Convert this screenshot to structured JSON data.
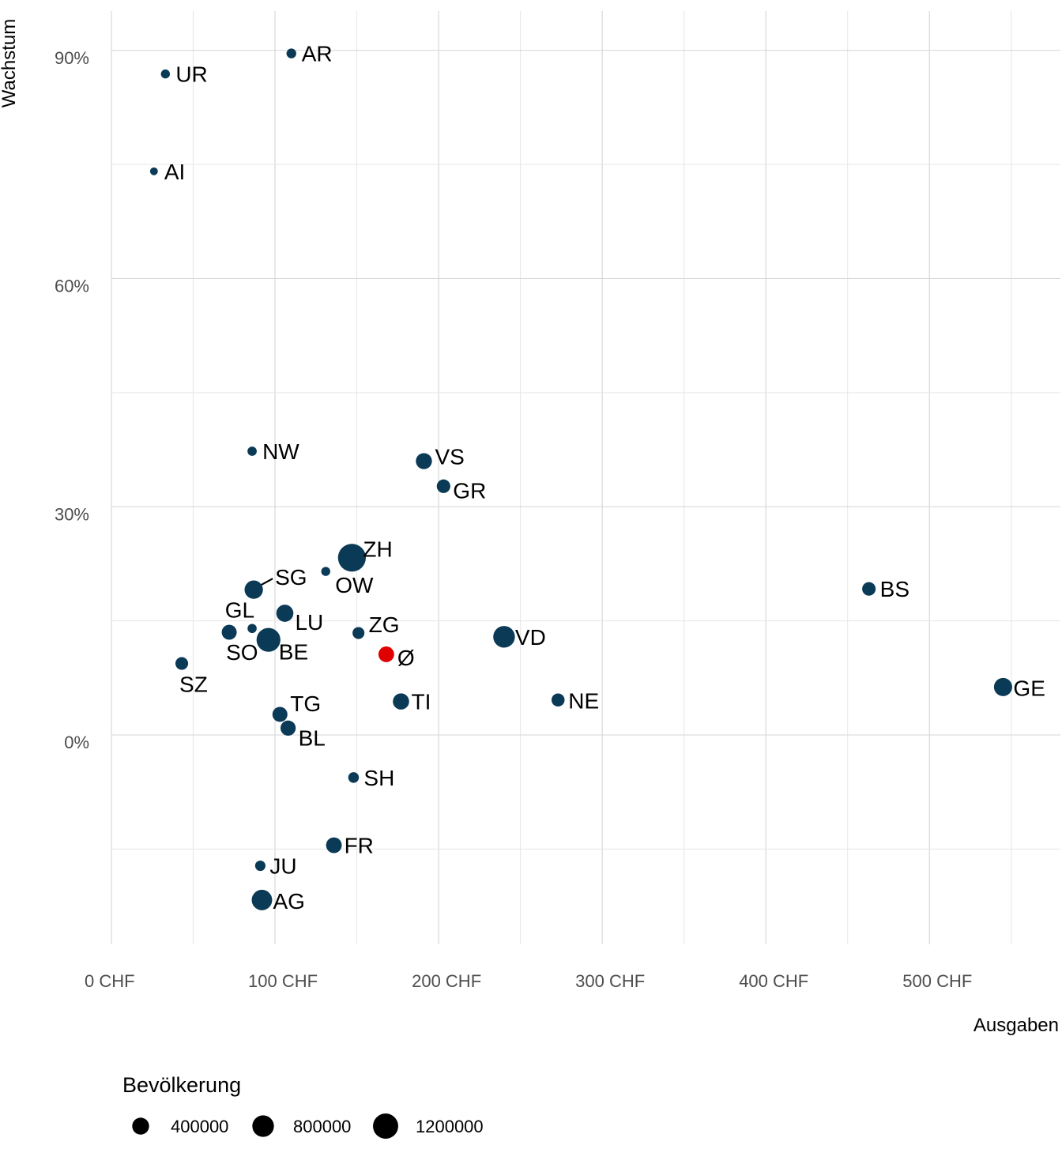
{
  "chart_data": {
    "type": "scatter",
    "xlabel": "Ausgaben",
    "ylabel": "Wachstum",
    "xlim": [
      0,
      580
    ],
    "ylim": [
      -30,
      95
    ],
    "x_ticks": [
      0,
      100,
      200,
      300,
      400,
      500
    ],
    "x_tick_labels": [
      "0 CHF",
      "100 CHF",
      "200 CHF",
      "300 CHF",
      "400 CHF",
      "500 CHF"
    ],
    "y_ticks": [
      0,
      30,
      60,
      90
    ],
    "y_tick_labels": [
      "0%",
      "30%",
      "60%",
      "90%"
    ],
    "grid": true,
    "size_legend": {
      "title": "Bevölkerung",
      "values": [
        400000,
        800000,
        1200000
      ],
      "labels": [
        "400000",
        "800000",
        "1200000"
      ]
    },
    "colors": {
      "point": "#0b3a57",
      "average": "#e00000",
      "label_line": "#000000"
    },
    "points": [
      {
        "label": "AR",
        "x": 110,
        "y": 89.6,
        "pop": 55000
      },
      {
        "label": "UR",
        "x": 33,
        "y": 86.9,
        "pop": 37000
      },
      {
        "label": "AI",
        "x": 26,
        "y": 74.1,
        "pop": 16000
      },
      {
        "label": "NW",
        "x": 86,
        "y": 37.3,
        "pop": 43000
      },
      {
        "label": "VS",
        "x": 191,
        "y": 36.0,
        "pop": 345000
      },
      {
        "label": "GR",
        "x": 203,
        "y": 32.7,
        "pop": 200000
      },
      {
        "label": "ZH",
        "x": 147,
        "y": 23.3,
        "pop": 1540000
      },
      {
        "label": "OW",
        "x": 131,
        "y": 21.5,
        "pop": 38000
      },
      {
        "label": "SG",
        "x": 87,
        "y": 19.1,
        "pop": 510000
      },
      {
        "label": "BS",
        "x": 463,
        "y": 19.2,
        "pop": 196000
      },
      {
        "label": "LU",
        "x": 106,
        "y": 16.0,
        "pop": 413000
      },
      {
        "label": "GL",
        "x": 86,
        "y": 14.0,
        "pop": 41000
      },
      {
        "label": "SO",
        "x": 72,
        "y": 13.5,
        "pop": 277000
      },
      {
        "label": "BE",
        "x": 96,
        "y": 12.5,
        "pop": 1040000
      },
      {
        "label": "ZG",
        "x": 151,
        "y": 13.4,
        "pop": 127000
      },
      {
        "label": "VD",
        "x": 240,
        "y": 12.9,
        "pop": 805000
      },
      {
        "label": "Ø",
        "x": 168,
        "y": 10.6,
        "pop": 320000,
        "average": true
      },
      {
        "label": "SZ",
        "x": 43,
        "y": 9.4,
        "pop": 160000
      },
      {
        "label": "TI",
        "x": 177,
        "y": 4.4,
        "pop": 354000
      },
      {
        "label": "NE",
        "x": 273,
        "y": 4.6,
        "pop": 176000
      },
      {
        "label": "GE",
        "x": 545,
        "y": 6.3,
        "pop": 500000
      },
      {
        "label": "TG",
        "x": 103,
        "y": 2.7,
        "pop": 280000
      },
      {
        "label": "BL",
        "x": 108,
        "y": 0.9,
        "pop": 290000
      },
      {
        "label": "SH",
        "x": 148,
        "y": -5.6,
        "pop": 82000
      },
      {
        "label": "FR",
        "x": 136,
        "y": -14.5,
        "pop": 320000
      },
      {
        "label": "JU",
        "x": 91,
        "y": -17.2,
        "pop": 73000
      },
      {
        "label": "AG",
        "x": 92,
        "y": -21.7,
        "pop": 690000
      }
    ]
  }
}
